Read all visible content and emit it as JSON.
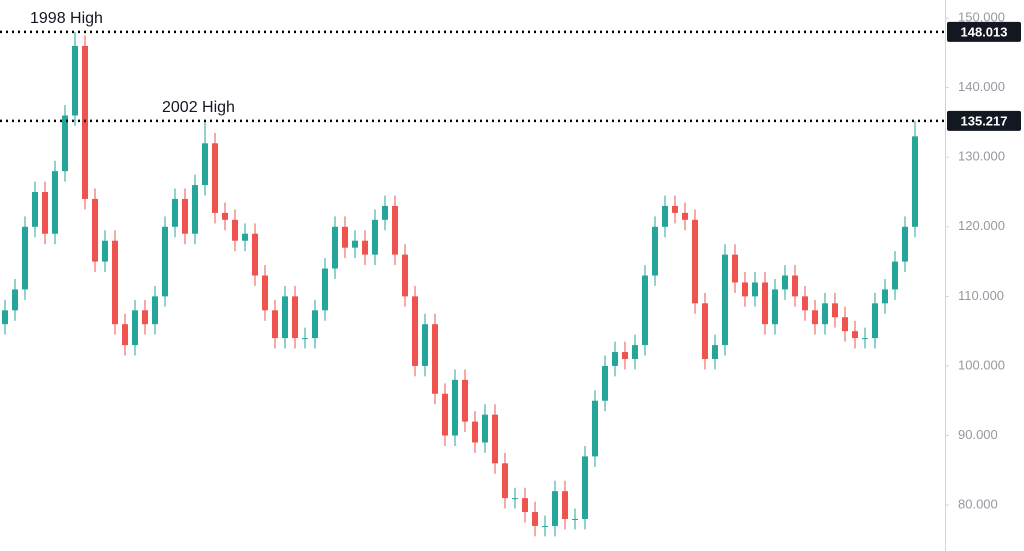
{
  "chart_data": {
    "type": "candlestick",
    "ylim": [
      73.4,
      152.6
    ],
    "yticks": [
      {
        "value": 80,
        "label": "80.000"
      },
      {
        "value": 90,
        "label": "90.000"
      },
      {
        "value": 100,
        "label": "100.000"
      },
      {
        "value": 110,
        "label": "110.000"
      },
      {
        "value": 120,
        "label": "120.000"
      },
      {
        "value": 130,
        "label": "130.000"
      },
      {
        "value": 140,
        "label": "140.000"
      },
      {
        "value": 150,
        "label": "150.000"
      }
    ],
    "up_color": "#26a69a",
    "down_color": "#ef5350",
    "levels": [
      {
        "value": 148.013,
        "text": "1998 High"
      },
      {
        "value": 135.217,
        "text": "2002 High"
      }
    ],
    "open": [
      106,
      108,
      111,
      120,
      125,
      119,
      128,
      136,
      146,
      124,
      115,
      118,
      106,
      103,
      108,
      106,
      110,
      120,
      124,
      119,
      126,
      132,
      122,
      121,
      118,
      119,
      113,
      108,
      104,
      110,
      104,
      104,
      108,
      114,
      120,
      117,
      118,
      116,
      121,
      123,
      116,
      110,
      100,
      106,
      96,
      90,
      98,
      92,
      89,
      93,
      86,
      81,
      81,
      79,
      77,
      77,
      82,
      78,
      78,
      87,
      95,
      100,
      102,
      101,
      103,
      113,
      120,
      123,
      122,
      121,
      109,
      101,
      103,
      116,
      112,
      110,
      112,
      106,
      111,
      113,
      110,
      108,
      106,
      109,
      107,
      105,
      104,
      104,
      109,
      111,
      115,
      120
    ],
    "high": [
      109.5,
      112.5,
      121.5,
      126.5,
      126.5,
      129.5,
      137.5,
      148,
      147.5,
      125.5,
      119.5,
      119.5,
      107.5,
      109.5,
      109.5,
      111.5,
      121.5,
      125.5,
      125.5,
      127.5,
      135.2,
      133.5,
      123.5,
      122.5,
      120.5,
      120.5,
      114.5,
      109.5,
      111.5,
      111.5,
      105.5,
      109.5,
      115.5,
      121.5,
      121.5,
      119.5,
      119.5,
      122.5,
      124.5,
      124.5,
      117.5,
      111.5,
      107.5,
      107.5,
      97.5,
      99.5,
      99.5,
      93.5,
      94.5,
      94.5,
      87.5,
      82.5,
      82.5,
      80.5,
      78.5,
      83.5,
      83.5,
      79.5,
      88.5,
      96.5,
      101.5,
      103.5,
      103.5,
      104.5,
      114.5,
      121.5,
      124.5,
      124.5,
      123.5,
      122.5,
      110.5,
      104.5,
      117.5,
      117.5,
      113.5,
      113.5,
      113.5,
      112.5,
      114.5,
      114.5,
      111.5,
      109.5,
      110.5,
      110.5,
      108.5,
      106.5,
      105.5,
      110.5,
      112.5,
      116.5,
      121.5,
      135.2
    ],
    "low": [
      104.5,
      106.5,
      109.5,
      118.5,
      117.5,
      117.5,
      126.5,
      134.5,
      122.5,
      113.5,
      113.5,
      104.5,
      101.5,
      101.5,
      104.5,
      104.5,
      108.5,
      118.5,
      117.5,
      117.5,
      124.5,
      120.5,
      119.5,
      116.5,
      116.5,
      111.5,
      106.5,
      102.5,
      102.5,
      102.5,
      102.5,
      102.5,
      106.5,
      112.5,
      115.5,
      115.5,
      114.5,
      114.5,
      119.5,
      114.5,
      108.5,
      98.5,
      98.5,
      94.5,
      88.5,
      88.5,
      90.5,
      87.5,
      87.5,
      84.5,
      79.5,
      79.5,
      77.5,
      75.5,
      75.5,
      75.5,
      76.5,
      76.5,
      76.5,
      85.5,
      93.5,
      98.5,
      99.5,
      99.5,
      101.5,
      111.5,
      118.5,
      120.5,
      119.5,
      107.5,
      99.5,
      99.5,
      101.5,
      110.5,
      108.5,
      108.5,
      104.5,
      104.5,
      109.5,
      108.5,
      106.5,
      104.5,
      104.5,
      105.5,
      103.5,
      102.5,
      102.5,
      102.5,
      107.5,
      109.5,
      113.5,
      118.5
    ],
    "close": [
      108,
      111,
      120,
      125,
      119,
      128,
      136,
      146,
      124,
      115,
      118,
      106,
      103,
      108,
      106,
      110,
      120,
      124,
      119,
      126,
      132,
      122,
      121,
      118,
      119,
      113,
      108,
      104,
      110,
      104,
      104,
      108,
      114,
      120,
      117,
      118,
      116,
      121,
      123,
      116,
      110,
      100,
      106,
      96,
      90,
      98,
      92,
      89,
      93,
      86,
      81,
      81,
      79,
      77,
      77,
      82,
      78,
      78,
      87,
      95,
      100,
      102,
      101,
      103,
      113,
      120,
      123,
      122,
      121,
      109,
      101,
      103,
      116,
      112,
      110,
      112,
      106,
      111,
      113,
      110,
      108,
      106,
      109,
      107,
      105,
      104,
      104,
      109,
      111,
      115,
      120,
      133
    ]
  }
}
